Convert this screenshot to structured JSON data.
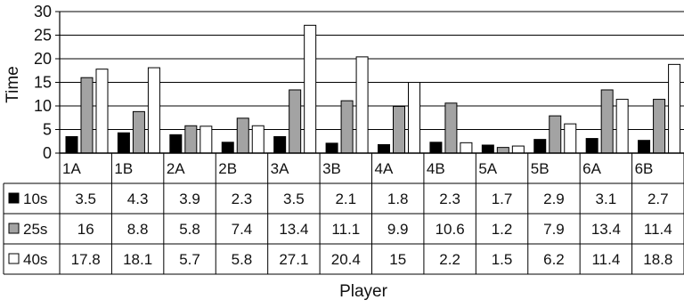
{
  "chart_data": {
    "type": "bar",
    "categories": [
      "1A",
      "1B",
      "2A",
      "2B",
      "3A",
      "3B",
      "4A",
      "4B",
      "5A",
      "5B",
      "6A",
      "6B"
    ],
    "series": [
      {
        "name": "10s",
        "values": [
          3.5,
          4.3,
          3.9,
          2.3,
          3.5,
          2.1,
          1.8,
          2.3,
          1.7,
          2.9,
          3.1,
          2.7
        ]
      },
      {
        "name": "25s",
        "values": [
          16,
          8.8,
          5.8,
          7.4,
          13.4,
          11.1,
          9.9,
          10.6,
          1.2,
          7.9,
          13.4,
          11.4
        ]
      },
      {
        "name": "40s",
        "values": [
          17.8,
          18.1,
          5.7,
          5.8,
          27.1,
          20.4,
          15,
          2.2,
          1.5,
          6.2,
          11.4,
          18.8
        ]
      }
    ],
    "series_colors": [
      "#000000",
      "#a3a3a3",
      "#ffffff"
    ],
    "ylabel": "Time",
    "xlabel": "Player",
    "ylim": [
      0,
      30
    ],
    "y_ticks": [
      0,
      5,
      10,
      15,
      20,
      25,
      30
    ],
    "grid": true,
    "legend": "data-table"
  }
}
